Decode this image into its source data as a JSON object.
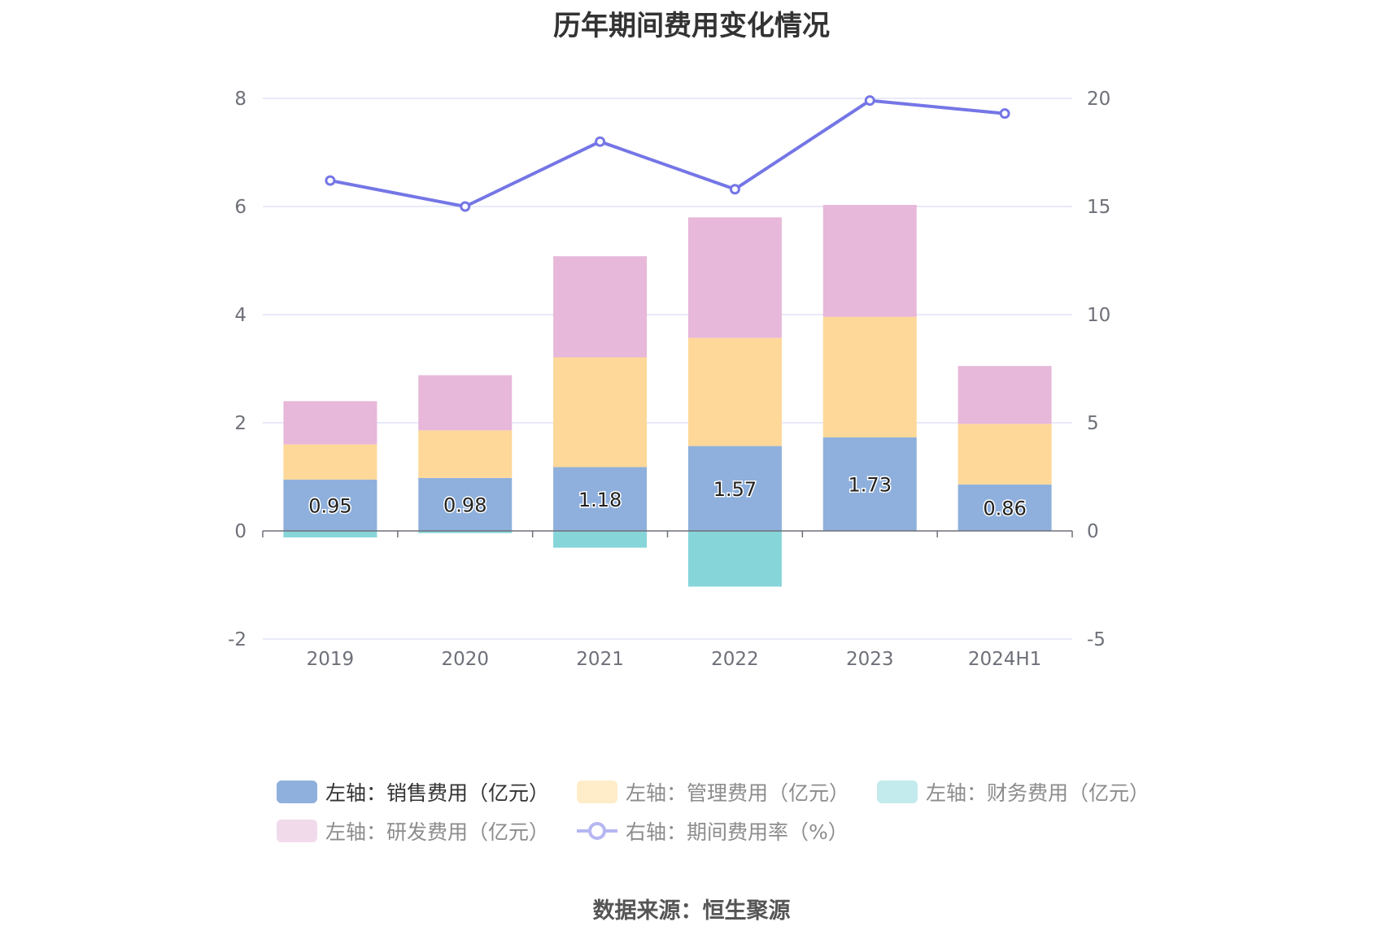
{
  "chart_data": {
    "type": "bar",
    "title": "历年期间费用变化情况",
    "categories": [
      "2019",
      "2020",
      "2021",
      "2022",
      "2023",
      "2024H1"
    ],
    "y_left": {
      "min": -2,
      "max": 8,
      "ticks": [
        "-2",
        "0",
        "2",
        "4",
        "6",
        "8"
      ]
    },
    "y_right": {
      "min": -5,
      "max": 20,
      "ticks": [
        "-5",
        "0",
        "5",
        "10",
        "15",
        "20"
      ]
    },
    "series": [
      {
        "name": "左轴：销售费用（亿元）",
        "type": "bar",
        "axis": "left",
        "color": "#8fb0dc",
        "values": [
          0.95,
          0.98,
          1.18,
          1.57,
          1.73,
          0.86
        ],
        "labels_shown": true
      },
      {
        "name": "左轴：管理费用（亿元）",
        "type": "bar",
        "axis": "left",
        "color": "#fed899",
        "values": [
          0.65,
          0.88,
          2.03,
          2.0,
          2.23,
          1.12
        ]
      },
      {
        "name": "左轴：财务费用（亿元）",
        "type": "bar",
        "axis": "left",
        "color": "#86d5d9",
        "values": [
          -0.12,
          -0.04,
          -0.31,
          -1.03,
          0.0,
          0.0
        ]
      },
      {
        "name": "左轴：研发费用（亿元）",
        "type": "bar",
        "axis": "left",
        "color": "#e7b8da",
        "values": [
          0.8,
          1.02,
          1.87,
          2.23,
          2.07,
          1.07
        ]
      },
      {
        "name": "右轴：期间费用率（%）",
        "type": "line",
        "axis": "right",
        "color": "#7476e6",
        "values": [
          16.2,
          15.0,
          18.0,
          15.8,
          19.9,
          19.3
        ]
      }
    ],
    "legend": [
      {
        "label": "左轴：销售费用（亿元）",
        "color": "#8fb0dc",
        "kind": "bar",
        "active": true
      },
      {
        "label": "左轴：管理费用（亿元）",
        "color": "#ffecc8",
        "kind": "bar",
        "active": false
      },
      {
        "label": "左轴：财务费用（亿元）",
        "color": "#c3eaec",
        "kind": "bar",
        "active": false
      },
      {
        "label": "左轴：研发费用（亿元）",
        "color": "#f1dbeb",
        "kind": "bar",
        "active": false
      },
      {
        "label": "右轴：期间费用率（%）",
        "color": "#b5b6f2",
        "kind": "line",
        "active": false
      }
    ]
  },
  "source_text": "数据来源：恒生聚源"
}
